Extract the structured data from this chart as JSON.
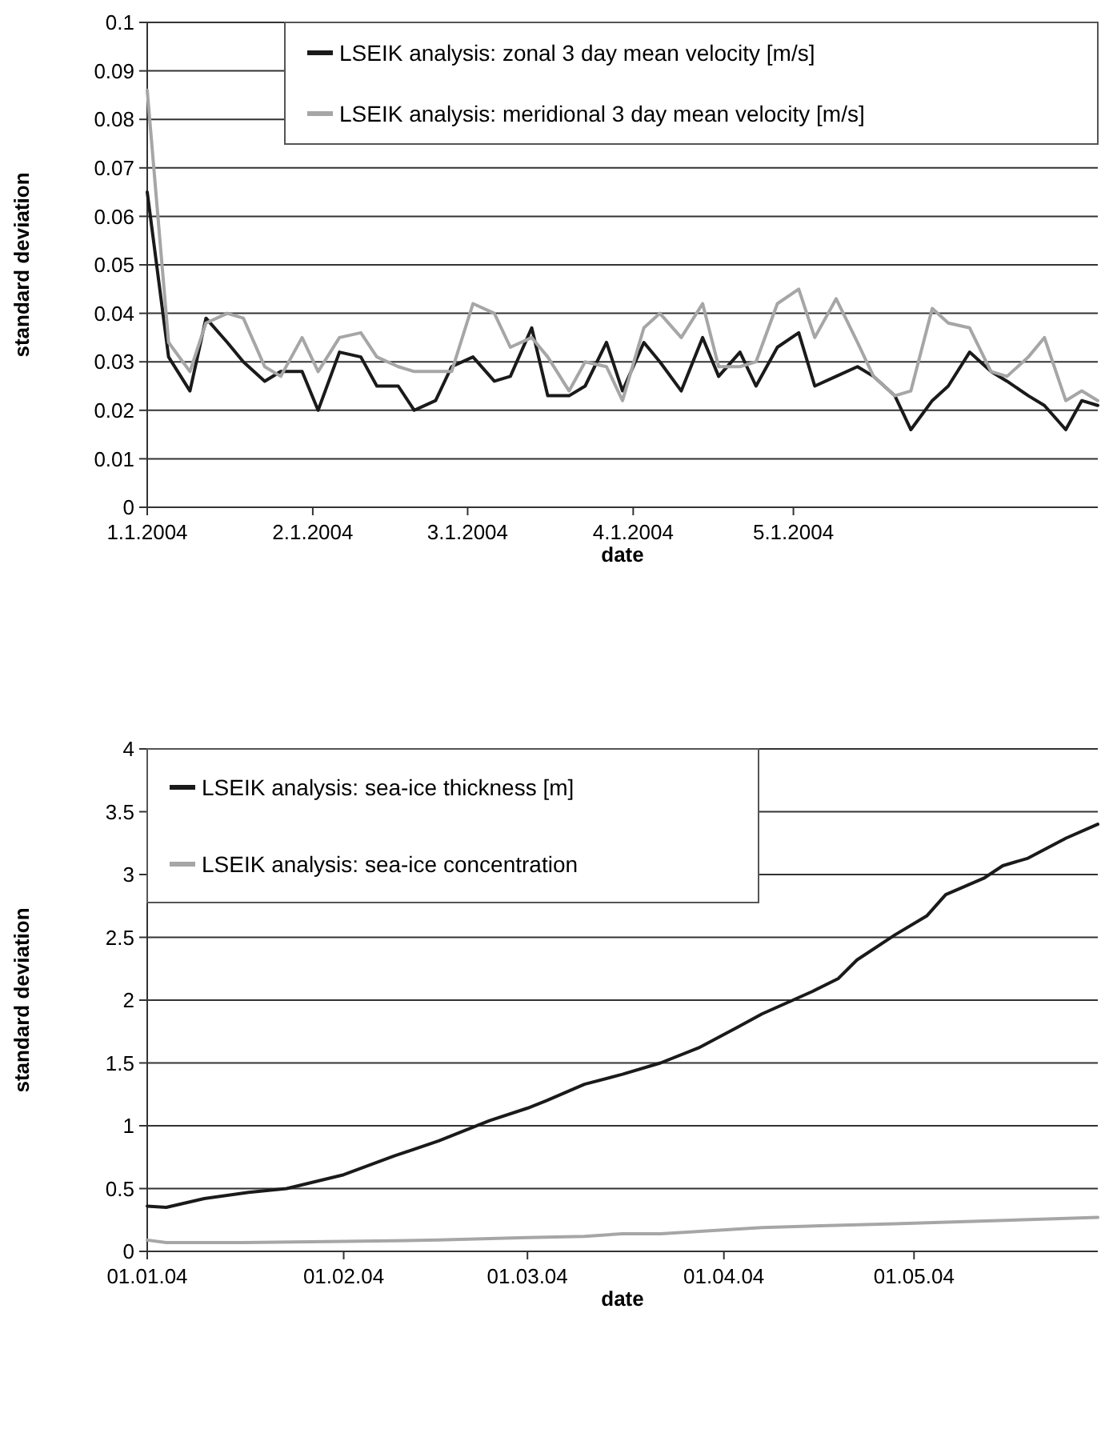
{
  "chart_data": [
    {
      "type": "line",
      "xlabel": "date",
      "ylabel": "standard deviation",
      "grid": "y",
      "legend": "top right",
      "x": [
        "2004-01-01",
        "2004-01-05",
        "2004-01-09",
        "2004-01-12",
        "2004-01-16",
        "2004-01-19",
        "2004-01-23",
        "2004-01-26",
        "2004-01-30",
        "2004-02-02",
        "2004-02-06",
        "2004-02-10",
        "2004-02-13",
        "2004-02-17",
        "2004-02-20",
        "2004-02-24",
        "2004-02-27",
        "2004-03-02",
        "2004-03-06",
        "2004-03-09",
        "2004-03-13",
        "2004-03-16",
        "2004-03-20",
        "2004-03-23",
        "2004-03-27",
        "2004-03-30",
        "2004-04-03",
        "2004-04-06",
        "2004-04-10",
        "2004-04-14",
        "2004-04-17",
        "2004-04-21",
        "2004-04-24",
        "2004-04-28",
        "2004-05-02",
        "2004-05-05",
        "2004-05-09",
        "2004-05-13",
        "2004-05-16",
        "2004-05-20",
        "2004-05-23",
        "2004-05-27",
        "2004-05-30",
        "2004-06-03",
        "2004-06-07",
        "2004-06-10",
        "2004-06-14",
        "2004-06-17",
        "2004-06-21",
        "2004-06-24",
        "2004-06-27"
      ],
      "xlim": [
        "2004-01-01",
        "2004-06-27"
      ],
      "xticks": [
        {
          "value": "2004-01-01",
          "label": "1.1.2004"
        },
        {
          "value": "2004-02-01",
          "label": "2.1.2004"
        },
        {
          "value": "2004-03-01",
          "label": "3.1.2004"
        },
        {
          "value": "2004-04-01",
          "label": "4.1.2004"
        },
        {
          "value": "2004-05-01",
          "label": "5.1.2004"
        }
      ],
      "ylim": [
        0,
        0.1
      ],
      "yticks": [
        0,
        0.01,
        0.02,
        0.03,
        0.04,
        0.05,
        0.06,
        0.07,
        0.08,
        0.09,
        0.1
      ],
      "series": [
        {
          "name": "LSEIK analysis: zonal 3 day mean velocity [m/s]",
          "color": "#1a1a1a",
          "values": [
            0.065,
            0.031,
            0.024,
            0.039,
            0.034,
            0.03,
            0.026,
            0.028,
            0.028,
            0.02,
            0.032,
            0.031,
            0.025,
            0.025,
            0.02,
            0.022,
            0.029,
            0.031,
            0.026,
            0.027,
            0.037,
            0.023,
            0.023,
            0.025,
            0.034,
            0.024,
            0.034,
            0.03,
            0.024,
            0.035,
            0.027,
            0.032,
            0.025,
            0.033,
            0.036,
            0.025,
            0.027,
            0.029,
            0.027,
            0.023,
            0.016,
            0.022,
            0.025,
            0.032,
            0.028,
            0.026,
            0.023,
            0.021,
            0.016,
            0.022,
            0.021
          ]
        },
        {
          "name": "LSEIK analysis: meridional 3 day mean velocity [m/s]",
          "color": "#a6a6a6",
          "values": [
            0.086,
            0.034,
            0.028,
            0.038,
            0.04,
            0.039,
            0.029,
            0.027,
            0.035,
            0.028,
            0.035,
            0.036,
            0.031,
            0.029,
            0.028,
            0.028,
            0.028,
            0.042,
            0.04,
            0.033,
            0.035,
            0.031,
            0.024,
            0.03,
            0.029,
            0.022,
            0.037,
            0.04,
            0.035,
            0.042,
            0.029,
            0.029,
            0.03,
            0.042,
            0.045,
            0.035,
            0.043,
            0.034,
            0.027,
            0.023,
            0.024,
            0.041,
            0.038,
            0.037,
            0.028,
            0.027,
            0.031,
            0.035,
            0.022,
            0.024,
            0.022
          ]
        }
      ]
    },
    {
      "type": "line",
      "xlabel": "date",
      "ylabel": "standard deviation",
      "grid": "y",
      "legend": "top left",
      "xlim": [
        "2004-01-01",
        "2004-05-30"
      ],
      "xticks": [
        {
          "value": "2004-01-01",
          "label": "01.01.04"
        },
        {
          "value": "2004-02-01",
          "label": "01.02.04"
        },
        {
          "value": "2004-03-01",
          "label": "01.03.04"
        },
        {
          "value": "2004-04-01",
          "label": "01.04.04"
        },
        {
          "value": "2004-05-01",
          "label": "01.05.04"
        }
      ],
      "ylim": [
        0,
        4
      ],
      "yticks": [
        0,
        0.5,
        1,
        1.5,
        2,
        2.5,
        3,
        3.5,
        4
      ],
      "series": [
        {
          "name": "LSEIK analysis: sea-ice thickness [m]",
          "color": "#1a1a1a",
          "x": [
            "2004-01-01",
            "2004-01-04",
            "2004-01-10",
            "2004-01-17",
            "2004-01-23",
            "2004-02-01",
            "2004-02-09",
            "2004-02-16",
            "2004-02-24",
            "2004-03-01",
            "2004-03-04",
            "2004-03-10",
            "2004-03-16",
            "2004-03-22",
            "2004-03-28",
            "2004-04-03",
            "2004-04-07",
            "2004-04-15",
            "2004-04-19",
            "2004-04-22",
            "2004-04-28",
            "2004-05-03",
            "2004-05-06",
            "2004-05-12",
            "2004-05-15",
            "2004-05-19",
            "2004-05-25",
            "2004-05-30"
          ],
          "values": [
            0.36,
            0.35,
            0.42,
            0.47,
            0.5,
            0.61,
            0.76,
            0.88,
            1.04,
            1.14,
            1.2,
            1.33,
            1.41,
            1.5,
            1.62,
            1.78,
            1.89,
            2.07,
            2.17,
            2.32,
            2.52,
            2.67,
            2.84,
            2.97,
            3.07,
            3.13,
            3.29,
            3.4
          ]
        },
        {
          "name": "LSEIK analysis: sea-ice concentration",
          "color": "#a6a6a6",
          "x": [
            "2004-01-01",
            "2004-01-04",
            "2004-01-16",
            "2004-02-01",
            "2004-02-16",
            "2004-03-01",
            "2004-03-10",
            "2004-03-16",
            "2004-03-22",
            "2004-04-07",
            "2004-04-28",
            "2004-05-30"
          ],
          "values": [
            0.09,
            0.07,
            0.07,
            0.08,
            0.09,
            0.11,
            0.12,
            0.14,
            0.14,
            0.19,
            0.22,
            0.27
          ]
        }
      ]
    }
  ]
}
